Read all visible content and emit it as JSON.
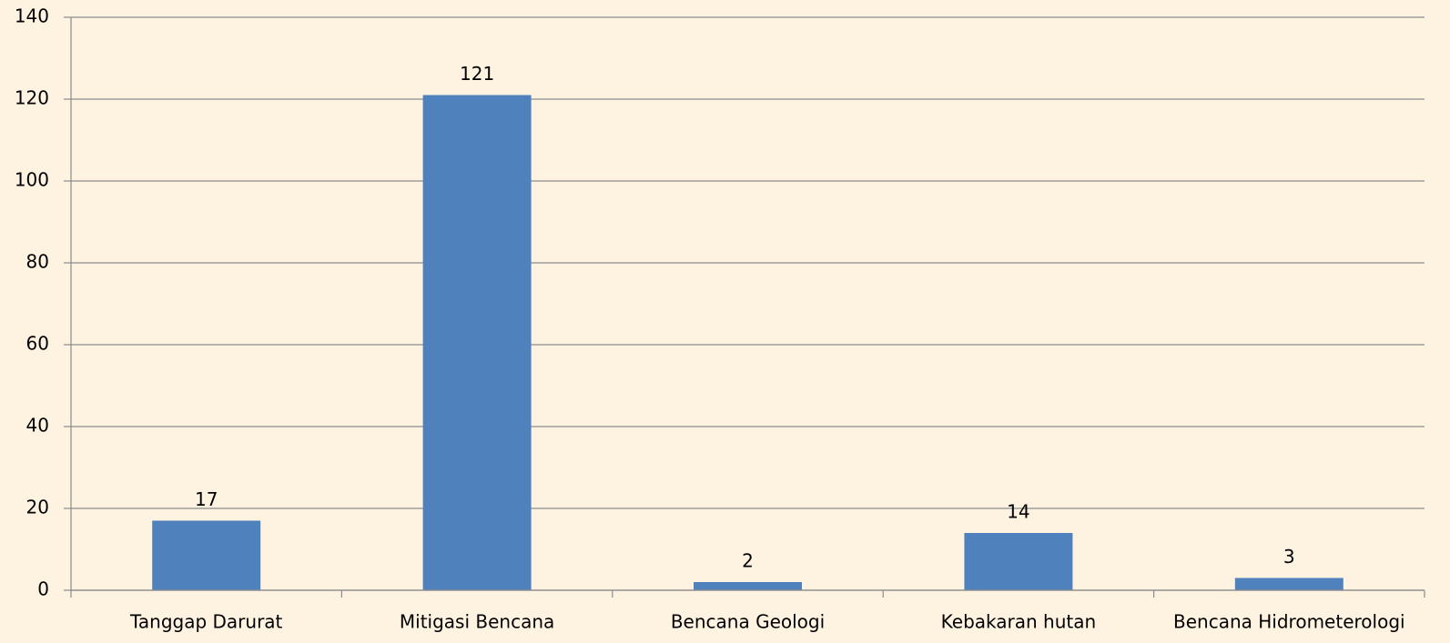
{
  "chart_data": {
    "type": "bar",
    "categories": [
      "Tanggap Darurat",
      "Mitigasi Bencana",
      "Bencana Geologi",
      "Kebakaran hutan",
      "Bencana Hidrometerologi"
    ],
    "values": [
      17,
      121,
      2,
      14,
      3
    ],
    "color": "#4f81bd",
    "ylim": [
      0,
      140
    ],
    "yticks": [
      0,
      20,
      40,
      60,
      80,
      100,
      120,
      140
    ],
    "grid": true
  }
}
